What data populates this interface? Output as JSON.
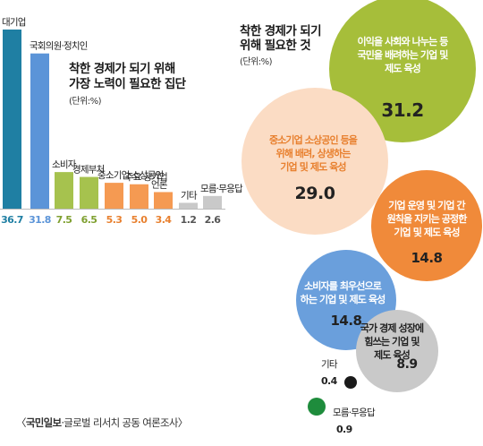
{
  "chart_data": [
    {
      "type": "bar",
      "title": "착한 경제가 되기 위해\n가장 노력이 필요한 집단",
      "unit": "(단위:%)",
      "categories": [
        "대기업",
        "국회의원·정치인",
        "소비자",
        "경제부처",
        "중소기업·소상공인",
        "주요 공기업",
        "언론",
        "기타",
        "모름·무응답"
      ],
      "values": [
        36.7,
        31.8,
        7.5,
        6.5,
        5.3,
        5.0,
        3.4,
        1.2,
        2.6
      ],
      "value_labels": [
        "36.7",
        "31.8",
        "7.5",
        "6.5",
        "5.3",
        "5.0",
        "3.4",
        "1.2",
        "2.6"
      ],
      "colors": [
        "#1f7fa3",
        "#5b94d8",
        "#a6c24e",
        "#a6c24e",
        "#f59a52",
        "#f59a52",
        "#f59a52",
        "#c9c9c9",
        "#c9c9c9"
      ],
      "value_colors": [
        "#1f7fa3",
        "#5b94d8",
        "#7fa030",
        "#7fa030",
        "#e8802f",
        "#e8802f",
        "#e8802f",
        "#555555",
        "#555555"
      ]
    },
    {
      "type": "bubble",
      "title": "착한 경제가 되기\n위해 필요한 것",
      "unit": "(단위:%)",
      "items": [
        {
          "label": "이익을 사회와 나누는 등\n국민을 배려하는 기업 및\n제도 육성",
          "value": 31.2,
          "value_label": "31.2",
          "color": "#a6be3a",
          "text_color": "#ffffff",
          "value_color": "#222222"
        },
        {
          "label": "중소기업 소상공인 등을\n위해 배려, 상생하는\n기업 및 제도 육성",
          "value": 29.0,
          "value_label": "29.0",
          "color": "#fbdcc4",
          "text_color": "#e8802f",
          "value_color": "#222222"
        },
        {
          "label": "기업 운영 및 기업 간\n원칙을 지키는 공정한\n기업 및 제도 육성",
          "value": 14.8,
          "value_label": "14.8",
          "color": "#f08a3a",
          "text_color": "#ffffff",
          "value_color": "#222222"
        },
        {
          "label": "소비자를 최우선으로\n하는 기업 및 제도 육성",
          "value": 14.8,
          "value_label": "14.8",
          "color": "#6a9fdc",
          "text_color": "#ffffff",
          "value_color": "#222222"
        },
        {
          "label": "국가 경제 성장에\n힘쓰는 기업 및\n제도 육성",
          "value": 8.9,
          "value_label": "8.9",
          "color": "#c9c9c9",
          "text_color": "#222222",
          "value_color": "#222222"
        },
        {
          "label": "기타",
          "value": 0.4,
          "value_label": "0.4",
          "color": "#1a1a1a",
          "text_color": "#222222",
          "value_color": "#222222"
        },
        {
          "label": "모름·무응답",
          "value": 0.9,
          "value_label": "0.9",
          "color": "#1e8c3c",
          "text_color": "#222222",
          "value_color": "#222222"
        }
      ]
    }
  ],
  "source": {
    "brand": "국민일보",
    "rest": "·글로벌 리서치 공동 여론조사"
  }
}
